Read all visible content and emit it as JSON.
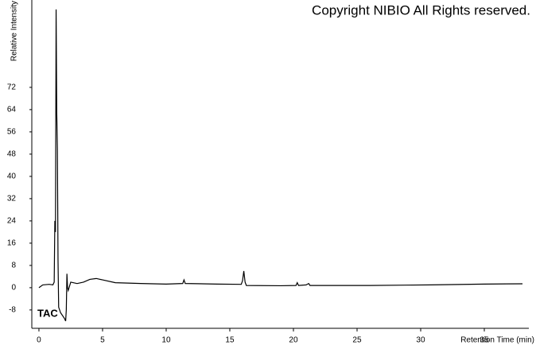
{
  "chart_data": {
    "type": "line",
    "title": "Copyright NIBIO All Rights reserved.",
    "ylabel": "Relative Intensity",
    "xlabel": "Retention Time (min)",
    "annotation": "TAC",
    "x": [
      0,
      0.3,
      0.8,
      1.1,
      1.2,
      1.25,
      1.3,
      1.35,
      1.4,
      1.45,
      1.5,
      1.55,
      1.7,
      2.0,
      2.1,
      2.15,
      2.2,
      2.25,
      2.3,
      2.5,
      3,
      3.5,
      4,
      4.5,
      5,
      6,
      8,
      10,
      11.3,
      11.4,
      11.5,
      14,
      15.9,
      16,
      16.1,
      16.2,
      16.3,
      19,
      20.2,
      20.3,
      20.4,
      21,
      21.2,
      21.3,
      26,
      30.8,
      35,
      38
    ],
    "series": [
      {
        "color": "#000000",
        "values": [
          0,
          1,
          1.2,
          1,
          2,
          24,
          20,
          100,
          63,
          50,
          10,
          -7,
          -9,
          -11,
          -12,
          -8,
          5,
          0,
          -1,
          2,
          1.5,
          2,
          3,
          3.3,
          2.8,
          1.8,
          1.5,
          1.3,
          1.5,
          2.8,
          1.5,
          1.3,
          1.2,
          2.5,
          6,
          2,
          0.8,
          0.7,
          0.8,
          1.8,
          0.8,
          1,
          1.5,
          0.8,
          0.8,
          1,
          1.3,
          1.4
        ]
      }
    ],
    "xlim": [
      -0.56,
      38.5
    ],
    "ylim": [
      -14.6,
      103.4
    ],
    "xticks": [
      0,
      5,
      10,
      15,
      20,
      25,
      30,
      35
    ],
    "yticks": [
      -8,
      0,
      8,
      16,
      24,
      32,
      40,
      48,
      56,
      64,
      72
    ],
    "grid": false
  }
}
